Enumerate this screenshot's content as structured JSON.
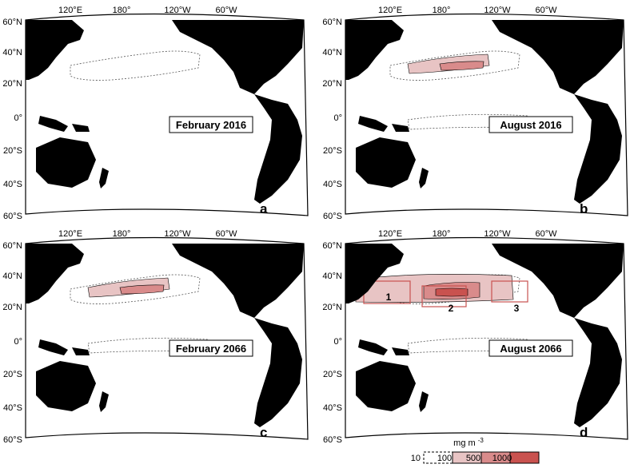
{
  "panels": [
    {
      "title": "February 2016",
      "letter": "a",
      "level": 1
    },
    {
      "title": "August 2016",
      "letter": "b",
      "level": 2
    },
    {
      "title": "February 2066",
      "letter": "c",
      "level": 2
    },
    {
      "title": "August 2066",
      "letter": "d",
      "level": 3
    }
  ],
  "axis_labels": {
    "top": [
      "120°E",
      "180°",
      "120°W",
      "60°W"
    ],
    "left": [
      "60°N",
      "40°N",
      "20°N",
      "0°",
      "20°S",
      "40°S",
      "60°S"
    ]
  },
  "regions": [
    "1",
    "2",
    "3"
  ],
  "legend": {
    "unit": "mg m",
    "unit_exp": "-3",
    "labels": [
      "10",
      "100",
      "500",
      "1000"
    ],
    "colors": [
      "#ffffff",
      "#e8c4c4",
      "#d98b8b",
      "#c9524f"
    ]
  },
  "colors": {
    "land": "#000000",
    "contour": "#555555",
    "fill_low": "#e8c4c4",
    "fill_mid": "#d98b8b",
    "fill_high": "#c9524f"
  }
}
